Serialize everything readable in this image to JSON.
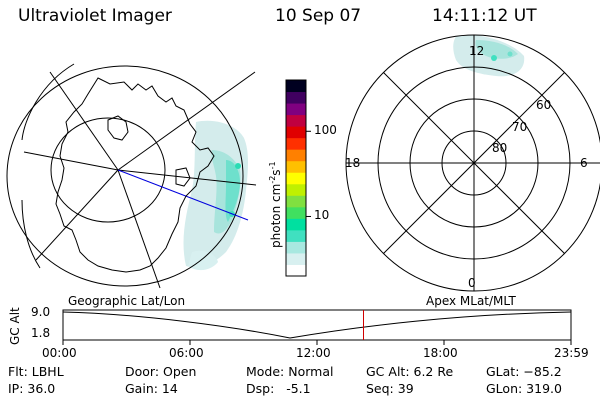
{
  "header": {
    "instrument": "Ultraviolet Imager",
    "date": "10 Sep 07",
    "time": "14:11:12 UT"
  },
  "colorbar": {
    "label": "photon cm",
    "label_sup1": "-2",
    "label_s": "s",
    "label_sup2": "-1",
    "ticks": [
      {
        "label": "100",
        "value": 100
      },
      {
        "label": "10",
        "value": 10
      }
    ],
    "range": [
      2,
      400
    ],
    "colors": [
      "#ffffff",
      "#d8f0f0",
      "#a8e8e0",
      "#40e0c0",
      "#00e0a0",
      "#40e060",
      "#80e040",
      "#c0f000",
      "#ffff00",
      "#ffc000",
      "#ff8000",
      "#ff3000",
      "#e00000",
      "#c00040",
      "#800080",
      "#400060",
      "#000020"
    ]
  },
  "left_map": {
    "caption": "Geographic Lat/Lon"
  },
  "right_map": {
    "caption": "Apex MLat/MLT",
    "mlt_labels": {
      "top": "12",
      "left": "18",
      "right": "6",
      "bottom": "0"
    },
    "lat_labels": [
      "60",
      "70",
      "80"
    ]
  },
  "altitude_plot": {
    "ylabel": "GC Alt",
    "y_ticks": [
      "9.0",
      "1.8"
    ],
    "x_ticks": [
      "00:00",
      "06:00",
      "12:00",
      "18:00",
      "23:59"
    ],
    "current_time_hours": 14.187
  },
  "info": {
    "flt": "Flt: LBHL",
    "ip": "IP: 36.0",
    "door": "Door: Open",
    "gain": "Gain: 14",
    "mode": "Mode: Normal",
    "dsp": "Dsp:   -5.1",
    "gc_alt": "GC Alt: 6.2 Re",
    "seq": "Seq: 39",
    "glat": "GLat: −85.2",
    "glon": "GLon: 319.0"
  }
}
